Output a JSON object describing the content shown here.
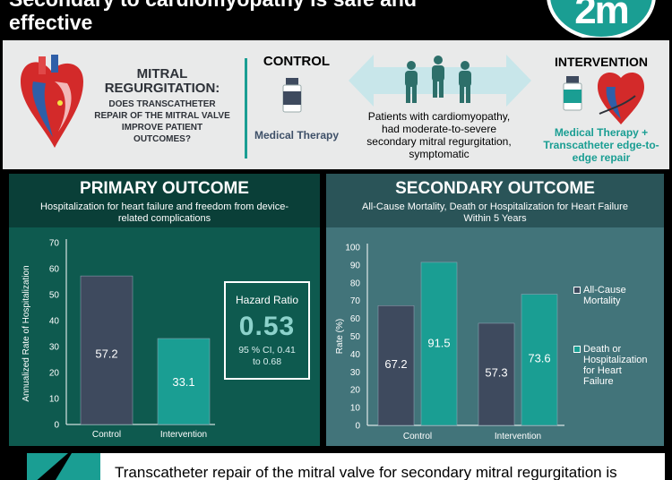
{
  "header": {
    "title": "Secondary to cardiomyopathy is safe and\neffective",
    "logo_text": "2m"
  },
  "top_panel": {
    "question_main": "MITRAL\nREGURGITATION:",
    "question_sub": "DOES TRANSCATHETER\nREPAIR OF THE MITRAL VALVE\nIMPROVE PATIENT\nOUTCOMES?",
    "control_title": "CONTROL",
    "control_label": "Medical Therapy",
    "patients_text": "Patients with cardiomyopathy,\nhad moderate-to-severe\nsecondary mitral regurgitation,\nsymptomatic",
    "intervention_title": "INTERVENTION",
    "intervention_label": "Medical Therapy +\nTranscatheter edge-to-\nedge repair"
  },
  "primary": {
    "title": "PRIMARY OUTCOME",
    "subtitle": "Hospitalization for heart failure and freedom from device-\nrelated complications",
    "hazard_title": "Hazard Ratio",
    "hazard_value": "0.53",
    "hazard_ci": "95 % CI, 0.41\nto 0.68"
  },
  "secondary": {
    "title": "SECONDARY OUTCOME",
    "subtitle": "All-Cause Mortality, Death or Hospitalization for Heart Failure\nWithin 5 Years"
  },
  "footer": {
    "text": "Transcatheter repair of the mitral valve for secondary mitral regurgitation is"
  },
  "colors": {
    "teal": "#1a9e93",
    "navy": "#3e4a5e",
    "dark_green": "#0e5a4f",
    "slate_teal": "#42747a"
  },
  "chart_data": [
    {
      "type": "bar",
      "title": "PRIMARY OUTCOME",
      "categories": [
        "Control",
        "Intervention"
      ],
      "values": [
        57.2,
        33.1
      ],
      "value_labels": [
        "57.2",
        "33.1"
      ],
      "ylabel": "Annualized Rate of Hospitalization",
      "ylim": [
        0,
        70
      ],
      "yticks": [
        0,
        10,
        20,
        30,
        40,
        50,
        60,
        70
      ],
      "bar_colors": [
        "#3e4a5e",
        "#1a9e93"
      ]
    },
    {
      "type": "bar",
      "title": "SECONDARY OUTCOME",
      "categories": [
        "Control",
        "Intervention"
      ],
      "series": [
        {
          "name": "All-Cause\nMortality",
          "values": [
            67.2,
            57.3
          ],
          "labels": [
            "67.2",
            "57.3"
          ],
          "color": "#3e4a5e"
        },
        {
          "name": "Death or\nHospitalization\nfor Heart\nFailure",
          "values": [
            91.5,
            73.6
          ],
          "labels": [
            "91.5",
            "73.6"
          ],
          "color": "#1a9e93"
        }
      ],
      "ylabel": "Rate (%)",
      "ylim": [
        0,
        100
      ],
      "yticks": [
        0,
        10,
        20,
        30,
        40,
        50,
        60,
        70,
        80,
        90,
        100
      ],
      "legend": "right"
    }
  ]
}
